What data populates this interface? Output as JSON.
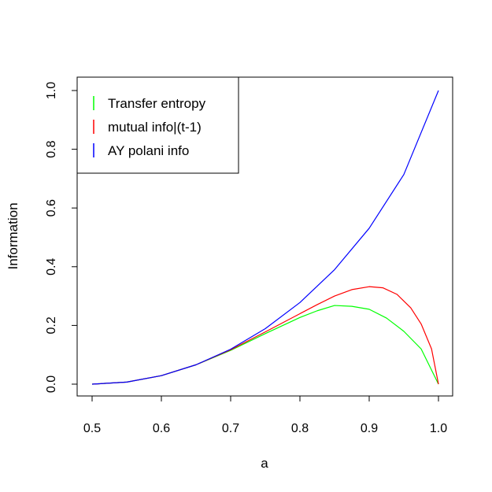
{
  "chart_data": {
    "type": "line",
    "title": "",
    "xlabel": "a",
    "ylabel": "Information",
    "xlim": [
      0.5,
      1.0
    ],
    "ylim": [
      0.0,
      1.0
    ],
    "x_ticks": [
      "0.5",
      "0.6",
      "0.7",
      "0.8",
      "0.9",
      "1.0"
    ],
    "y_ticks": [
      "0.0",
      "0.2",
      "0.4",
      "0.6",
      "0.8",
      "1.0"
    ],
    "grid": false,
    "legend_position": "top-left",
    "series": [
      {
        "name": "Transfer entropy",
        "color": "#00ff00",
        "x": [
          0.5,
          0.55,
          0.6,
          0.65,
          0.7,
          0.75,
          0.8,
          0.825,
          0.85,
          0.875,
          0.9,
          0.925,
          0.95,
          0.975,
          1.0
        ],
        "y": [
          0.0,
          0.007,
          0.029,
          0.066,
          0.115,
          0.172,
          0.227,
          0.25,
          0.268,
          0.265,
          0.255,
          0.225,
          0.18,
          0.12,
          0.0
        ]
      },
      {
        "name": "mutual info|(t-1)",
        "color": "#ff0000",
        "x": [
          0.5,
          0.55,
          0.6,
          0.65,
          0.7,
          0.75,
          0.8,
          0.825,
          0.85,
          0.875,
          0.9,
          0.92,
          0.94,
          0.96,
          0.975,
          0.99,
          1.0
        ],
        "y": [
          0.0,
          0.007,
          0.029,
          0.066,
          0.117,
          0.178,
          0.24,
          0.271,
          0.3,
          0.322,
          0.332,
          0.328,
          0.306,
          0.26,
          0.205,
          0.12,
          0.0
        ]
      },
      {
        "name": "AY polani info",
        "color": "#0000ff",
        "x": [
          0.5,
          0.55,
          0.6,
          0.65,
          0.7,
          0.75,
          0.8,
          0.85,
          0.9,
          0.95,
          1.0
        ],
        "y": [
          0.0,
          0.007,
          0.029,
          0.066,
          0.119,
          0.189,
          0.278,
          0.39,
          0.531,
          0.714,
          1.0
        ]
      }
    ]
  }
}
